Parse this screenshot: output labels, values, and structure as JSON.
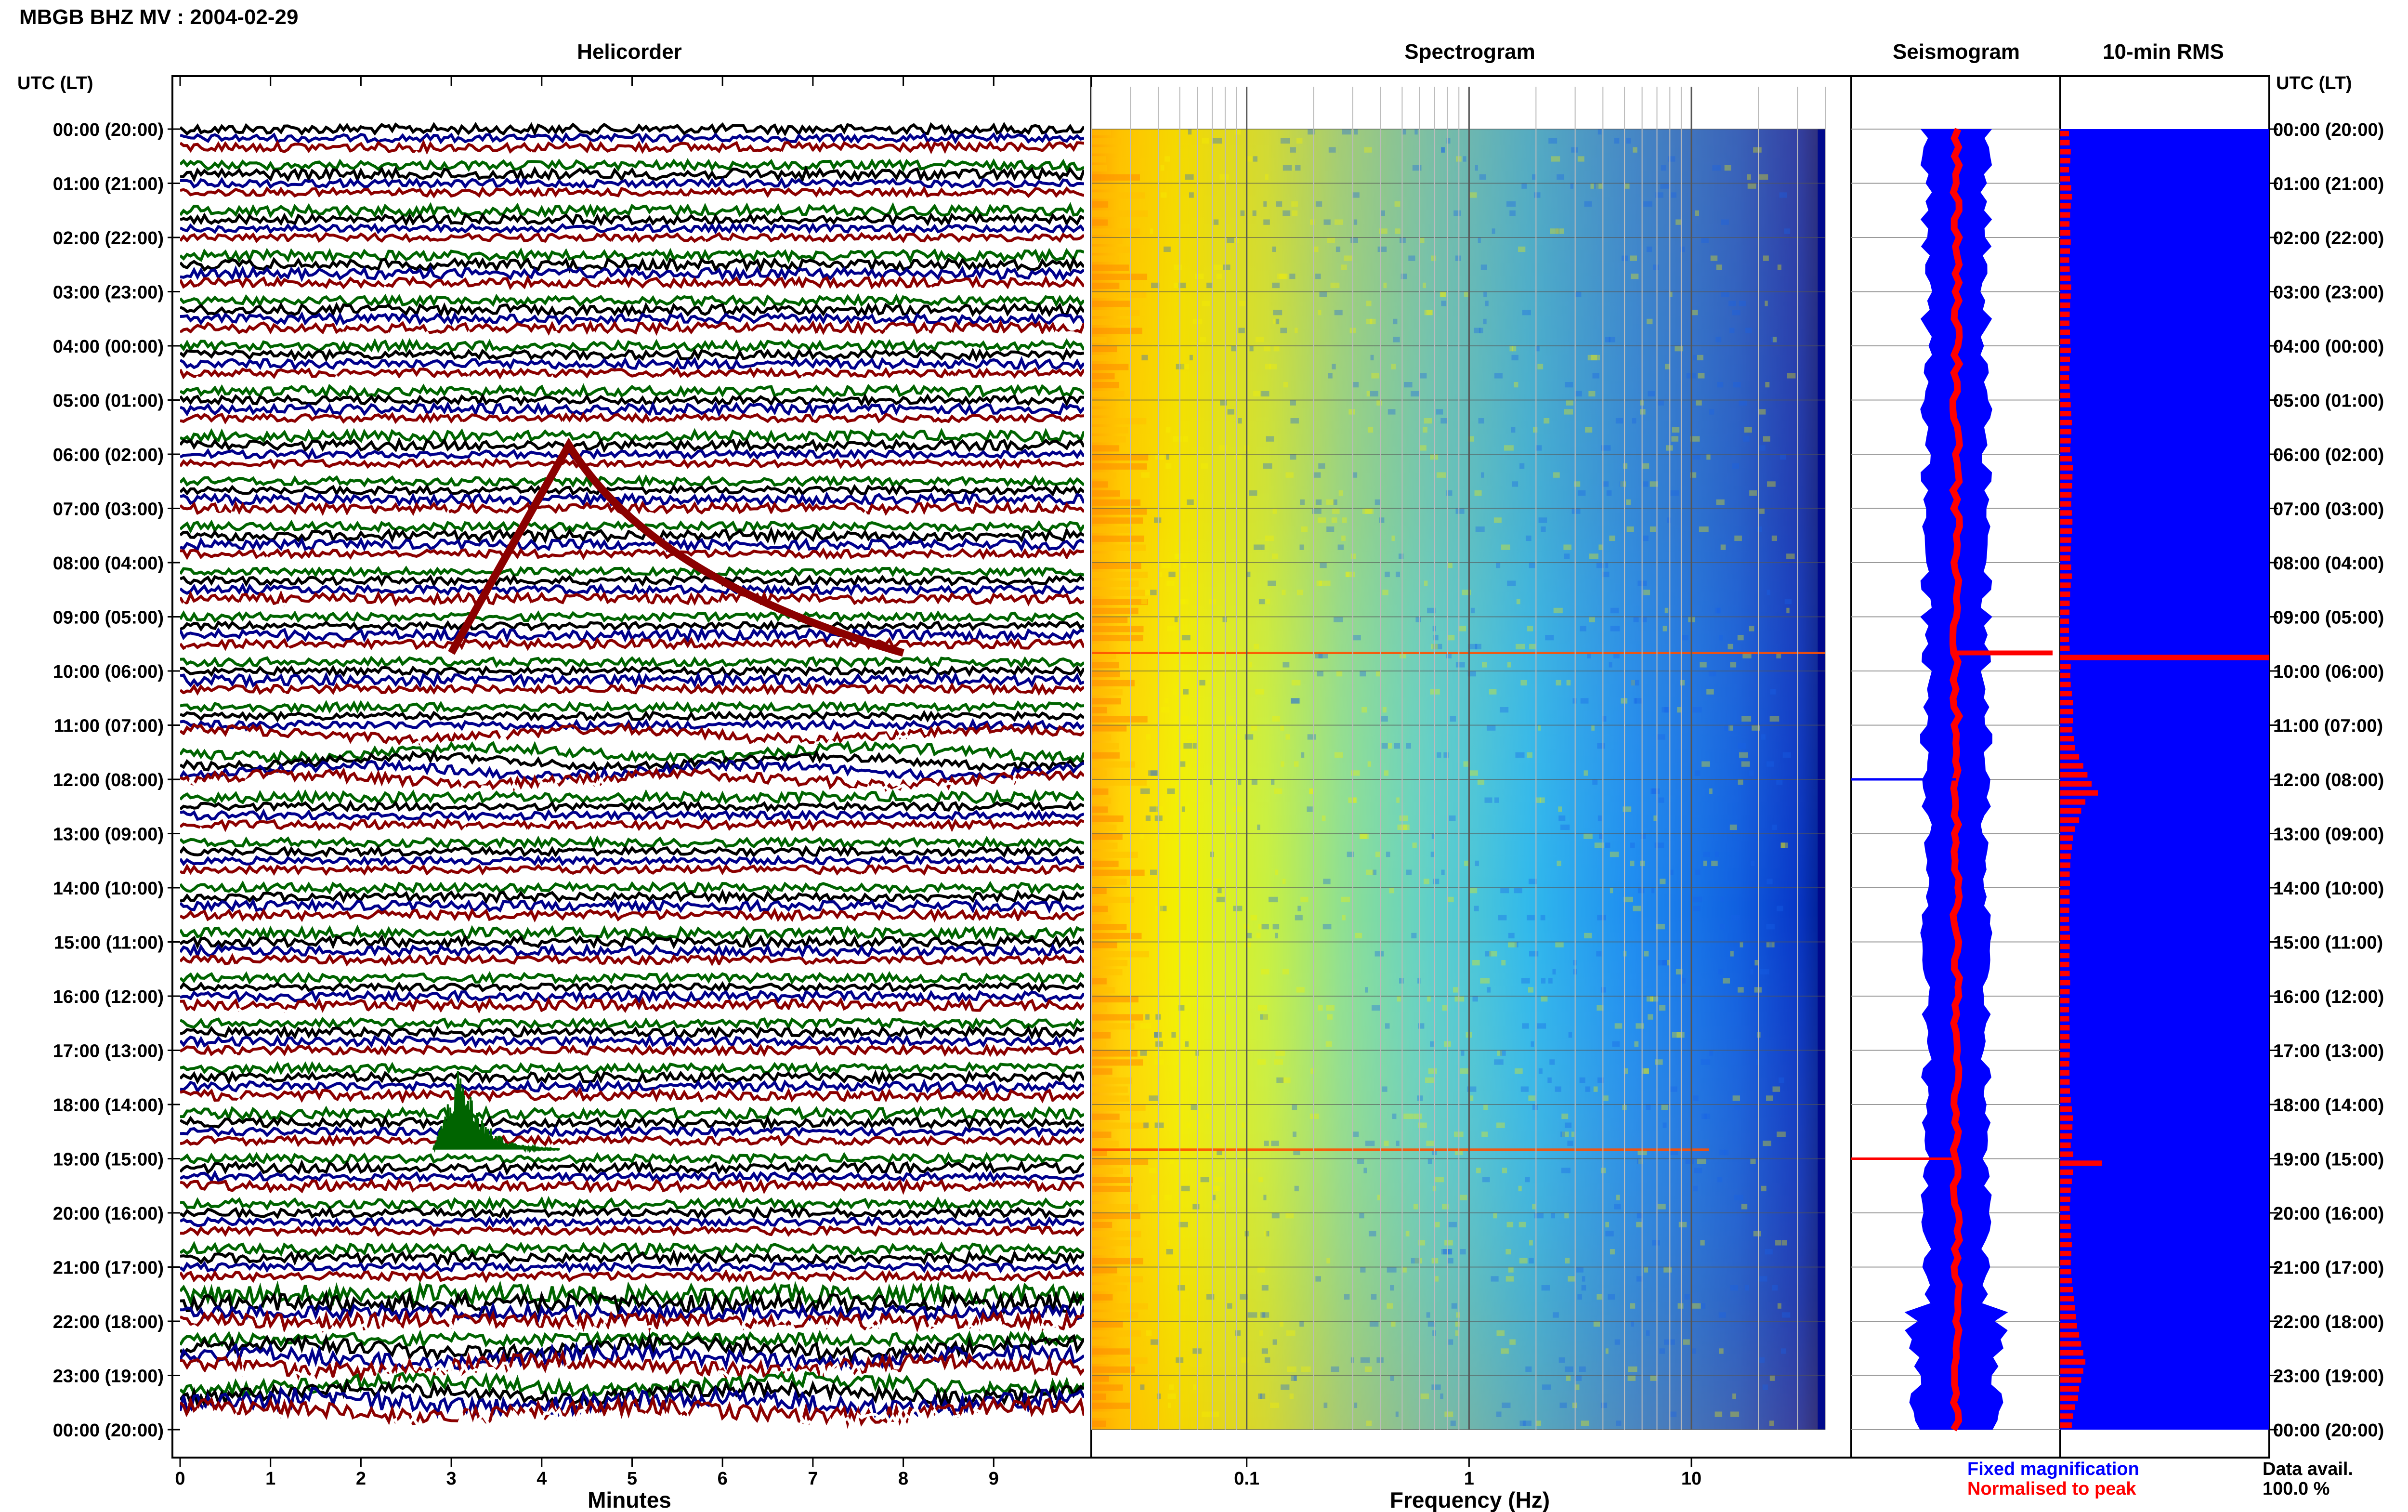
{
  "header": {
    "title": "MBGB BHZ MV : 2004-02-29"
  },
  "panels": {
    "helicorder": "Helicorder",
    "spectrogram": "Spectrogram",
    "seismogram": "Seismogram",
    "rms": "10-min RMS"
  },
  "axis_labels": {
    "left_time": "UTC (LT)",
    "right_time": "UTC (LT)",
    "helicorder_x": "Minutes",
    "spectrogram_x": "Frequency (Hz)"
  },
  "legend": {
    "fixed": "Fixed magnification",
    "normalised": "Normalised to peak",
    "fixed_color": "#0000ff",
    "normalised_color": "#ff0000"
  },
  "availability": {
    "label": "Data avail.",
    "value": "100.0 %"
  },
  "colors": {
    "trace_cycle": [
      "#000000",
      "#00008b",
      "#8b0000",
      "#ffffff",
      "#006400"
    ],
    "seismo_fill": "#0000ff",
    "seismo_norm": "#ff0000",
    "rms_bg": "#0000ff",
    "rms_bar": "#ff0000"
  },
  "chart_data": [
    {
      "type": "line",
      "name": "helicorder",
      "title": "Helicorder",
      "xlabel": "Minutes",
      "ylabel": "UTC (LT)",
      "xlim": [
        0,
        10
      ],
      "x_ticks": [
        "0",
        "1",
        "2",
        "3",
        "4",
        "5",
        "6",
        "7",
        "8",
        "9"
      ],
      "y_ticks": [
        "00:00 (20:00)",
        "01:00 (21:00)",
        "02:00 (22:00)",
        "03:00 (23:00)",
        "04:00 (00:00)",
        "05:00 (01:00)",
        "06:00 (02:00)",
        "07:00 (03:00)",
        "08:00 (04:00)",
        "09:00 (05:00)",
        "10:00 (06:00)",
        "11:00 (07:00)",
        "12:00 (08:00)",
        "13:00 (09:00)",
        "14:00 (10:00)",
        "15:00 (11:00)",
        "16:00 (12:00)",
        "17:00 (13:00)",
        "18:00 (14:00)",
        "19:00 (15:00)",
        "20:00 (16:00)",
        "21:00 (17:00)",
        "22:00 (18:00)",
        "23:00 (19:00)",
        "00:00 (20:00)"
      ],
      "rows": 144,
      "minutes_per_row": 10,
      "events": [
        {
          "row": 58,
          "start_min": 3.0,
          "peak_min": 4.3,
          "end_min": 8.0,
          "peak_rows": 23,
          "color": "#8b0000"
        },
        {
          "row": 113,
          "start_min": 2.8,
          "peak_min": 3.1,
          "end_min": 4.2,
          "peak_rows": 10,
          "color": "#006400"
        }
      ]
    },
    {
      "type": "heatmap",
      "name": "spectrogram",
      "title": "Spectrogram",
      "xlabel": "Frequency (Hz)",
      "x_scale": "log",
      "xlim": [
        0.02,
        40
      ],
      "x_ticks": [
        "0.1",
        "1",
        "10"
      ],
      "rows": 144,
      "colormap": "jet"
    },
    {
      "type": "line",
      "name": "seismogram",
      "title": "Seismogram",
      "series": [
        {
          "name": "Fixed magnification",
          "color": "#0000ff"
        },
        {
          "name": "Normalised to peak",
          "color": "#ff0000"
        }
      ],
      "spike_rows": [
        58,
        72,
        114
      ]
    },
    {
      "type": "bar",
      "name": "rms",
      "title": "10-min RMS",
      "orientation": "horizontal",
      "rows": 144,
      "values": [
        0.4,
        0.45,
        0.5,
        0.48,
        0.42,
        0.46,
        0.52,
        0.55,
        0.5,
        0.47,
        0.44,
        0.48,
        0.5,
        0.46,
        0.43,
        0.45,
        0.49,
        0.52,
        0.5,
        0.47,
        0.45,
        0.44,
        0.46,
        0.48,
        0.5,
        0.46,
        0.44,
        0.42,
        0.45,
        0.47,
        0.5,
        0.52,
        0.55,
        0.53,
        0.5,
        0.48,
        0.55,
        0.6,
        0.58,
        0.56,
        0.54,
        0.52,
        0.55,
        0.58,
        0.56,
        0.53,
        0.5,
        0.48,
        0.52,
        0.55,
        0.5,
        0.47,
        0.45,
        0.44,
        0.42,
        0.4,
        0.42,
        0.45,
        10.0,
        0.5,
        0.48,
        0.5,
        0.55,
        0.6,
        0.62,
        0.6,
        0.58,
        0.65,
        0.7,
        0.9,
        1.1,
        1.3,
        1.5,
        1.8,
        1.2,
        1.0,
        0.9,
        0.7,
        0.6,
        0.55,
        0.5,
        0.48,
        0.45,
        0.46,
        0.44,
        0.45,
        0.43,
        0.42,
        0.44,
        0.46,
        0.45,
        0.44,
        0.43,
        0.45,
        0.47,
        0.45,
        0.44,
        0.42,
        0.43,
        0.45,
        0.44,
        0.46,
        0.45,
        0.43,
        0.44,
        0.45,
        0.46,
        0.5,
        0.55,
        0.6,
        0.58,
        0.55,
        0.5,
        0.62,
        2.0,
        0.6,
        0.55,
        0.5,
        0.48,
        0.45,
        0.47,
        0.5,
        0.52,
        0.55,
        0.53,
        0.5,
        0.52,
        0.55,
        0.6,
        0.65,
        0.7,
        0.75,
        0.8,
        0.9,
        1.0,
        1.1,
        1.2,
        1.1,
        1.0,
        0.9,
        0.85,
        0.7,
        0.6,
        0.55
      ]
    }
  ]
}
